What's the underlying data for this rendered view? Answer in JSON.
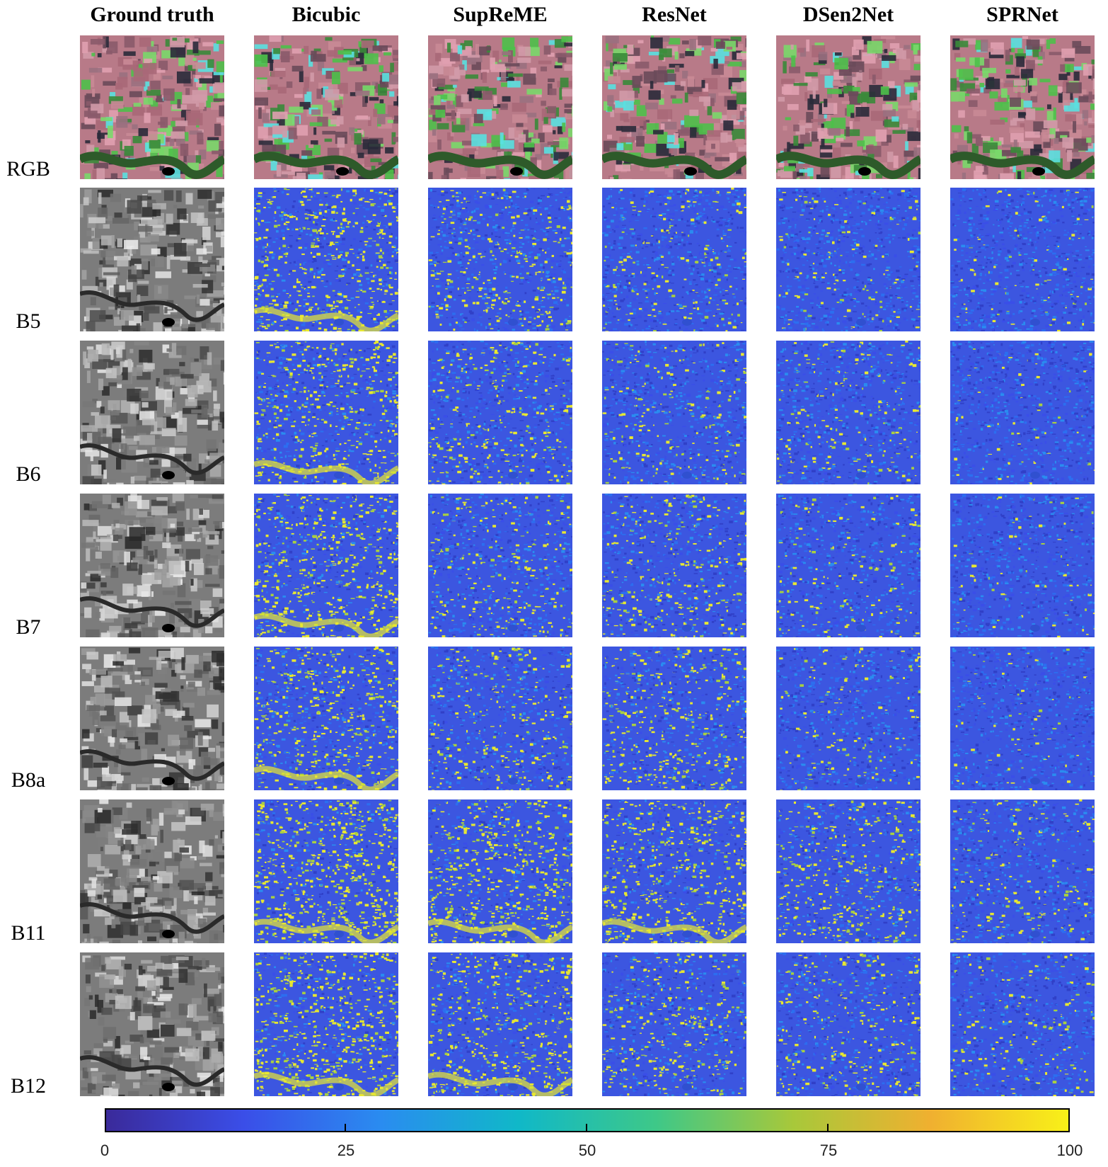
{
  "columns": [
    "Ground truth",
    "Bicubic",
    "SupReME",
    "ResNet",
    "DSen2Net",
    "SPRNet"
  ],
  "rows": [
    "RGB",
    "B5",
    "B6",
    "B7",
    "B8a",
    "B11",
    "B12"
  ],
  "colormap": {
    "ticks": [
      "0",
      "25",
      "50",
      "75",
      "100"
    ],
    "colors": [
      "#3a2a9a",
      "#3a4ee8",
      "#2a8cf0",
      "#10b8c8",
      "#3ec888",
      "#a8c83a",
      "#f0b030",
      "#f8f018"
    ]
  },
  "error_level": {
    "Bicubic": [
      null,
      0.55,
      0.5,
      0.55,
      0.5,
      0.75,
      0.65
    ],
    "SupReME": [
      null,
      0.35,
      0.3,
      0.3,
      0.3,
      0.6,
      0.5
    ],
    "ResNet": [
      null,
      0.2,
      0.25,
      0.3,
      0.4,
      0.55,
      0.35
    ],
    "DSen2Net": [
      null,
      0.15,
      0.2,
      0.2,
      0.15,
      0.4,
      0.3
    ],
    "SPRNet": [
      null,
      0.08,
      0.08,
      0.08,
      0.08,
      0.2,
      0.2
    ]
  }
}
